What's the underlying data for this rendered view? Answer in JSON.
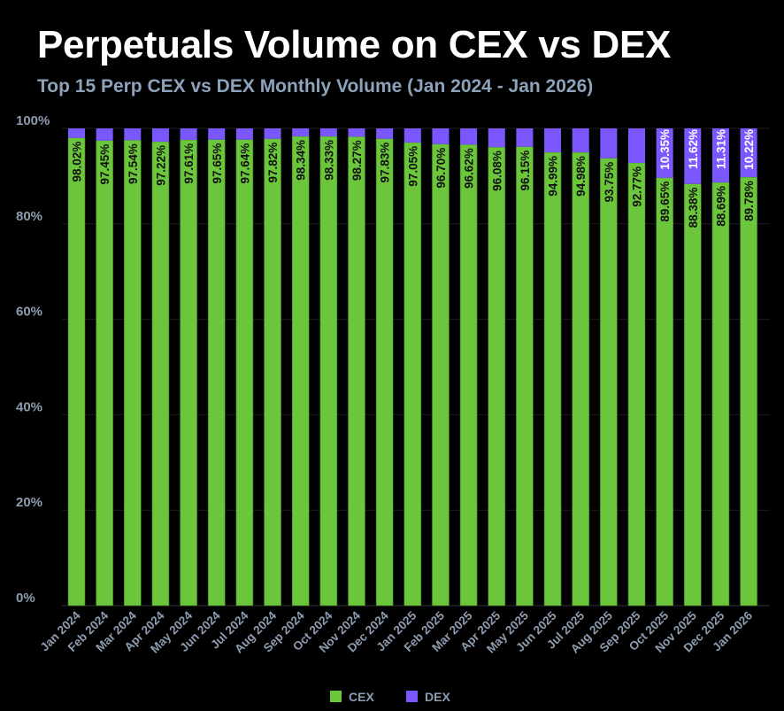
{
  "chart_data": {
    "type": "bar",
    "stacked": true,
    "title": "Perpetuals Volume on CEX vs DEX",
    "subtitle": "Top 15 Perp CEX vs DEX Monthly Volume (Jan 2024 - Jan 2026)",
    "xlabel": "",
    "ylabel": "",
    "ylim": [
      0,
      100
    ],
    "yticks": [
      "0%",
      "20%",
      "40%",
      "60%",
      "80%",
      "100%"
    ],
    "grid": true,
    "legend": "bottom",
    "categories": [
      "Jan 2024",
      "Feb 2024",
      "Mar 2024",
      "Apr 2024",
      "May 2024",
      "Jun 2024",
      "Jul 2024",
      "Aug 2024",
      "Sep 2024",
      "Oct 2024",
      "Nov 2024",
      "Dec 2024",
      "Jan 2025",
      "Feb 2025",
      "Mar 2025",
      "Apr 2025",
      "May 2025",
      "Jun 2025",
      "Jul 2025",
      "Aug 2025",
      "Sep 2025",
      "Oct 2025",
      "Nov 2025",
      "Dec 2025",
      "Jan 2026"
    ],
    "series": [
      {
        "name": "CEX",
        "color": "#6cc63c",
        "values": [
          98.02,
          97.45,
          97.54,
          97.22,
          97.61,
          97.65,
          97.64,
          97.82,
          98.34,
          98.33,
          98.27,
          97.83,
          97.05,
          96.7,
          96.62,
          96.08,
          96.15,
          94.99,
          94.98,
          93.75,
          92.77,
          89.65,
          88.38,
          88.69,
          89.78
        ],
        "labels": [
          "98.02%",
          "97.45%",
          "97.54%",
          "97.22%",
          "97.61%",
          "97.65%",
          "97.64%",
          "97.82%",
          "98.34%",
          "98.33%",
          "98.27%",
          "97.83%",
          "97.05%",
          "96.70%",
          "96.62%",
          "96.08%",
          "96.15%",
          "94.99%",
          "94.98%",
          "93.75%",
          "92.77%",
          "89.65%",
          "88.38%",
          "88.69%",
          "89.78%"
        ]
      },
      {
        "name": "DEX",
        "color": "#7b57ff",
        "values": [
          1.98,
          2.55,
          2.46,
          2.78,
          2.39,
          2.35,
          2.36,
          2.18,
          1.66,
          1.67,
          1.73,
          2.17,
          2.95,
          3.3,
          3.38,
          3.92,
          3.85,
          5.01,
          5.02,
          6.25,
          7.23,
          10.35,
          11.62,
          11.31,
          10.22
        ],
        "labels": [
          "",
          "",
          "",
          "",
          "",
          "",
          "",
          "",
          "",
          "",
          "",
          "",
          "",
          "",
          "",
          "",
          "",
          "",
          "",
          "",
          "",
          "10.35%",
          "11.62%",
          "11.31%",
          "10.22%"
        ]
      }
    ]
  }
}
